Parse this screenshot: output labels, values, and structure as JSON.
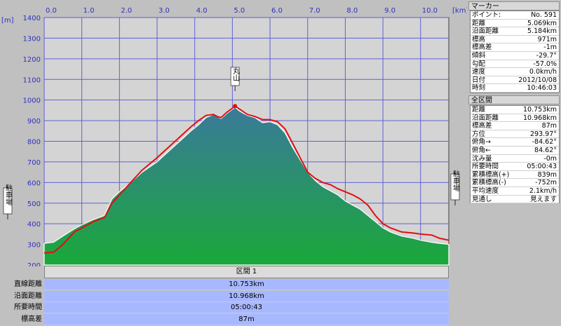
{
  "chart": {
    "y_unit": "[m]",
    "x_unit": "[km]",
    "x_ticks": [
      "0.0",
      "1.0",
      "2.0",
      "3.0",
      "4.0",
      "5.0",
      "6.0",
      "7.0",
      "8.0",
      "9.0",
      "10.0"
    ],
    "y_ticks": [
      "200",
      "300",
      "400",
      "500",
      "600",
      "700",
      "800",
      "900",
      "1000",
      "1100",
      "1200",
      "1300",
      "1400"
    ],
    "colors": {
      "plot_bg": "#d4d4d4",
      "grid": "#6060d8",
      "fill_top": "#3a7a9a",
      "fill_bottom": "#1aa83a",
      "route_line": "#e01010"
    },
    "landmarks": [
      {
        "label": "駐車場",
        "x": 0.0,
        "y": 300
      },
      {
        "label": "丸山",
        "x": 5.07,
        "y": 971
      },
      {
        "label": "駐車場",
        "x": 10.75,
        "y": 320
      }
    ]
  },
  "chart_data": {
    "type": "area",
    "xlabel": "[km]",
    "ylabel": "[m]",
    "xlim": [
      0,
      10.75
    ],
    "ylim": [
      200,
      1400
    ],
    "grid": true,
    "series": [
      {
        "x": [
          0,
          0.25,
          0.5,
          0.8,
          1.0,
          1.3,
          1.6,
          1.8,
          2.0,
          2.3,
          2.6,
          3.0,
          3.3,
          3.6,
          3.9,
          4.1,
          4.3,
          4.5,
          4.6,
          4.7,
          4.85,
          5.0,
          5.07,
          5.2,
          5.4,
          5.6,
          5.8,
          6.0,
          6.2,
          6.4,
          6.6,
          6.8,
          7.0,
          7.2,
          7.4,
          7.6,
          7.8,
          8.0,
          8.2,
          8.4,
          8.6,
          8.8,
          9.0,
          9.2,
          9.5,
          9.8,
          10.0,
          10.3,
          10.5,
          10.75
        ],
        "values": [
          305,
          310,
          340,
          375,
          395,
          420,
          440,
          520,
          555,
          600,
          650,
          700,
          750,
          800,
          850,
          880,
          915,
          930,
          920,
          910,
          935,
          955,
          965,
          945,
          925,
          915,
          890,
          895,
          880,
          840,
          770,
          710,
          650,
          610,
          580,
          560,
          540,
          510,
          490,
          470,
          440,
          410,
          380,
          360,
          340,
          330,
          320,
          310,
          305,
          300
        ]
      },
      {
        "x": [
          0,
          0.25,
          0.5,
          0.8,
          1.0,
          1.3,
          1.6,
          1.8,
          2.0,
          2.3,
          2.6,
          3.0,
          3.3,
          3.6,
          3.9,
          4.1,
          4.3,
          4.5,
          4.6,
          4.7,
          4.85,
          5.0,
          5.07,
          5.2,
          5.4,
          5.6,
          5.8,
          6.0,
          6.2,
          6.4,
          6.6,
          6.8,
          7.0,
          7.2,
          7.4,
          7.6,
          7.8,
          8.0,
          8.2,
          8.4,
          8.6,
          8.8,
          9.0,
          9.2,
          9.5,
          9.8,
          10.0,
          10.3,
          10.5,
          10.75
        ],
        "values": [
          258,
          262,
          300,
          360,
          380,
          410,
          430,
          500,
          540,
          600,
          660,
          720,
          770,
          820,
          870,
          900,
          925,
          930,
          920,
          915,
          940,
          960,
          971,
          955,
          930,
          920,
          905,
          905,
          895,
          860,
          790,
          720,
          650,
          620,
          600,
          590,
          570,
          555,
          540,
          520,
          490,
          440,
          400,
          380,
          360,
          355,
          350,
          345,
          330,
          320
        ]
      }
    ]
  },
  "section_bar": {
    "label": "区間 1"
  },
  "bottom_stats": [
    {
      "label": "直線距離",
      "value": "10.753km"
    },
    {
      "label": "沿面距離",
      "value": "10.968km"
    },
    {
      "label": "所要時間",
      "value": "05:00:43"
    },
    {
      "label": "標高差",
      "value": "87m"
    }
  ],
  "marker": {
    "title": "マーカー",
    "rows": [
      {
        "k": "ポイント:",
        "v": "No. 591"
      },
      {
        "k": "距離",
        "v": "5.069km"
      },
      {
        "k": "沿面距離",
        "v": "5.184km"
      },
      {
        "k": "標高",
        "v": "971m"
      },
      {
        "k": "標高差",
        "v": "-1m"
      },
      {
        "k": "傾斜",
        "v": "-29.7°"
      },
      {
        "k": "勾配",
        "v": "-57.0%"
      },
      {
        "k": "速度",
        "v": "0.0km/h"
      },
      {
        "k": "日付",
        "v": "2012/10/08"
      },
      {
        "k": "時刻",
        "v": "10:46:03"
      }
    ]
  },
  "full_section": {
    "title": "全区間",
    "rows": [
      {
        "k": "距離",
        "v": "10.753km"
      },
      {
        "k": "沿面距離",
        "v": "10.968km"
      },
      {
        "k": "標高差",
        "v": "87m"
      },
      {
        "k": "方位",
        "v": "293.97°"
      },
      {
        "k": "俯角→",
        "v": "-84.62°"
      },
      {
        "k": "俯角←",
        "v": "84.62°"
      },
      {
        "k": "沈み量",
        "v": "-0m"
      },
      {
        "k": "所要時間",
        "v": "05:00:43"
      },
      {
        "k": "累積標高(+)",
        "v": "839m"
      },
      {
        "k": "累積標高(-)",
        "v": "-752m"
      },
      {
        "k": "平均速度",
        "v": "2.1km/h"
      },
      {
        "k": "見通し",
        "v": "見えます"
      }
    ]
  }
}
